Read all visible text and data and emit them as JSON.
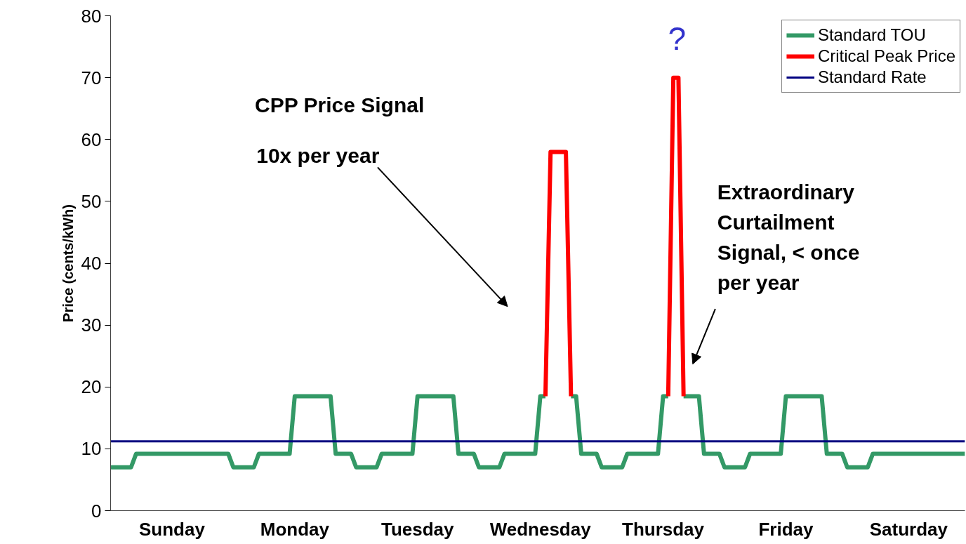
{
  "chart_data": {
    "type": "line",
    "ylabel": "Price (cents/kWh)",
    "ylim": [
      0,
      80
    ],
    "yticks": [
      0,
      10,
      20,
      30,
      40,
      50,
      60,
      70,
      80
    ],
    "categories": [
      null,
      null,
      null,
      null,
      null,
      null,
      null,
      null,
      null,
      null,
      null,
      null,
      "Sunday",
      null,
      null,
      null,
      null,
      null,
      null,
      null,
      null,
      null,
      null,
      null,
      null,
      null,
      null,
      null,
      null,
      null,
      null,
      null,
      null,
      null,
      null,
      null,
      "Monday",
      null,
      null,
      null,
      null,
      null,
      null,
      null,
      null,
      null,
      null,
      null,
      null,
      null,
      null,
      null,
      null,
      null,
      null,
      null,
      null,
      null,
      null,
      null,
      "Tuesday",
      null,
      null,
      null,
      null,
      null,
      null,
      null,
      null,
      null,
      null,
      null,
      null,
      null,
      null,
      null,
      null,
      null,
      null,
      null,
      null,
      null,
      null,
      null,
      "Wednesday",
      null,
      null,
      null,
      null,
      null,
      null,
      null,
      null,
      null,
      null,
      null,
      null,
      null,
      null,
      null,
      null,
      null,
      null,
      null,
      null,
      null,
      null,
      null,
      "Thursday",
      null,
      null,
      null,
      null,
      null,
      null,
      null,
      null,
      null,
      null,
      null,
      null,
      null,
      null,
      null,
      null,
      null,
      null,
      null,
      null,
      null,
      null,
      null,
      "Friday",
      null,
      null,
      null,
      null,
      null,
      null,
      null,
      null,
      null,
      null,
      null,
      null,
      null,
      null,
      null,
      null,
      null,
      null,
      null,
      null,
      null,
      null,
      null,
      "Saturday",
      null,
      null,
      null,
      null,
      null,
      null,
      null,
      null,
      null,
      null,
      null
    ],
    "grid": false,
    "legend": "top right",
    "line_style": "solid",
    "marker": "none",
    "series": [
      {
        "name": "Standard TOU",
        "color": "#339966",
        "values": [
          7,
          7,
          7,
          7,
          7,
          9.2,
          9.2,
          9.2,
          9.2,
          9.2,
          9.2,
          9.2,
          9.2,
          9.2,
          9.2,
          9.2,
          9.2,
          9.2,
          9.2,
          9.2,
          9.2,
          9.2,
          9.2,
          9.2,
          7,
          7,
          7,
          7,
          7,
          9.2,
          9.2,
          9.2,
          9.2,
          9.2,
          9.2,
          9.2,
          18.5,
          18.5,
          18.5,
          18.5,
          18.5,
          18.5,
          18.5,
          18.5,
          9.2,
          9.2,
          9.2,
          9.2,
          7,
          7,
          7,
          7,
          7,
          9.2,
          9.2,
          9.2,
          9.2,
          9.2,
          9.2,
          9.2,
          18.5,
          18.5,
          18.5,
          18.5,
          18.5,
          18.5,
          18.5,
          18.5,
          9.2,
          9.2,
          9.2,
          9.2,
          7,
          7,
          7,
          7,
          7,
          9.2,
          9.2,
          9.2,
          9.2,
          9.2,
          9.2,
          9.2,
          18.5,
          18.5,
          null,
          null,
          null,
          null,
          18.5,
          18.5,
          9.2,
          9.2,
          9.2,
          9.2,
          7,
          7,
          7,
          7,
          7,
          9.2,
          9.2,
          9.2,
          9.2,
          9.2,
          9.2,
          9.2,
          18.5,
          18.5,
          null,
          null,
          18.5,
          18.5,
          18.5,
          18.5,
          9.2,
          9.2,
          9.2,
          9.2,
          7,
          7,
          7,
          7,
          7,
          9.2,
          9.2,
          9.2,
          9.2,
          9.2,
          9.2,
          9.2,
          18.5,
          18.5,
          18.5,
          18.5,
          18.5,
          18.5,
          18.5,
          18.5,
          9.2,
          9.2,
          9.2,
          9.2,
          7,
          7,
          7,
          7,
          7,
          9.2,
          9.2,
          9.2,
          9.2,
          9.2,
          9.2,
          9.2,
          9.2,
          9.2,
          9.2,
          9.2,
          9.2,
          9.2,
          9.2,
          9.2,
          9.2,
          9.2,
          9.2,
          9.2
        ]
      },
      {
        "name": "Critical Peak Price",
        "color": "#ff0000",
        "values": [
          null,
          null,
          null,
          null,
          null,
          null,
          null,
          null,
          null,
          null,
          null,
          null,
          null,
          null,
          null,
          null,
          null,
          null,
          null,
          null,
          null,
          null,
          null,
          null,
          null,
          null,
          null,
          null,
          null,
          null,
          null,
          null,
          null,
          null,
          null,
          null,
          null,
          null,
          null,
          null,
          null,
          null,
          null,
          null,
          null,
          null,
          null,
          null,
          null,
          null,
          null,
          null,
          null,
          null,
          null,
          null,
          null,
          null,
          null,
          null,
          null,
          null,
          null,
          null,
          null,
          null,
          null,
          null,
          null,
          null,
          null,
          null,
          null,
          null,
          null,
          null,
          null,
          null,
          null,
          null,
          null,
          null,
          null,
          null,
          null,
          18.5,
          58,
          58,
          58,
          58,
          18.5,
          null,
          null,
          null,
          null,
          null,
          null,
          null,
          null,
          null,
          null,
          null,
          null,
          null,
          null,
          null,
          null,
          null,
          null,
          18.5,
          70,
          70,
          18.5,
          null,
          null,
          null,
          null,
          null,
          null,
          null,
          null,
          null,
          null,
          null,
          null,
          null,
          null,
          null,
          null,
          null,
          null,
          null,
          null,
          null,
          null,
          null,
          null,
          null,
          null,
          null,
          null,
          null,
          null,
          null,
          null,
          null,
          null,
          null,
          null,
          null,
          null,
          null,
          null,
          null,
          null,
          null,
          null,
          null,
          null,
          null,
          null,
          null,
          null,
          null,
          null,
          null,
          null,
          null
        ]
      },
      {
        "name": "Standard Rate",
        "color": "#000080",
        "values": [
          11.2,
          11.2,
          11.2,
          11.2,
          11.2,
          11.2,
          11.2,
          11.2,
          11.2,
          11.2,
          11.2,
          11.2,
          11.2,
          11.2,
          11.2,
          11.2,
          11.2,
          11.2,
          11.2,
          11.2,
          11.2,
          11.2,
          11.2,
          11.2,
          11.2,
          11.2,
          11.2,
          11.2,
          11.2,
          11.2,
          11.2,
          11.2,
          11.2,
          11.2,
          11.2,
          11.2,
          11.2,
          11.2,
          11.2,
          11.2,
          11.2,
          11.2,
          11.2,
          11.2,
          11.2,
          11.2,
          11.2,
          11.2,
          11.2,
          11.2,
          11.2,
          11.2,
          11.2,
          11.2,
          11.2,
          11.2,
          11.2,
          11.2,
          11.2,
          11.2,
          11.2,
          11.2,
          11.2,
          11.2,
          11.2,
          11.2,
          11.2,
          11.2,
          11.2,
          11.2,
          11.2,
          11.2,
          11.2,
          11.2,
          11.2,
          11.2,
          11.2,
          11.2,
          11.2,
          11.2,
          11.2,
          11.2,
          11.2,
          11.2,
          11.2,
          11.2,
          11.2,
          11.2,
          11.2,
          11.2,
          11.2,
          11.2,
          11.2,
          11.2,
          11.2,
          11.2,
          11.2,
          11.2,
          11.2,
          11.2,
          11.2,
          11.2,
          11.2,
          11.2,
          11.2,
          11.2,
          11.2,
          11.2,
          11.2,
          11.2,
          11.2,
          11.2,
          11.2,
          11.2,
          11.2,
          11.2,
          11.2,
          11.2,
          11.2,
          11.2,
          11.2,
          11.2,
          11.2,
          11.2,
          11.2,
          11.2,
          11.2,
          11.2,
          11.2,
          11.2,
          11.2,
          11.2,
          11.2,
          11.2,
          11.2,
          11.2,
          11.2,
          11.2,
          11.2,
          11.2,
          11.2,
          11.2,
          11.2,
          11.2,
          11.2,
          11.2,
          11.2,
          11.2,
          11.2,
          11.2,
          11.2,
          11.2,
          11.2,
          11.2,
          11.2,
          11.2,
          11.2,
          11.2,
          11.2,
          11.2,
          11.2,
          11.2,
          11.2,
          11.2,
          11.2,
          11.2,
          11.2,
          11.2
        ]
      }
    ],
    "annotations": [
      "CPP Price Signal",
      "10x per year",
      "Extraordinary\nCurtailment\nSignal, < once\nper year",
      "?"
    ]
  }
}
